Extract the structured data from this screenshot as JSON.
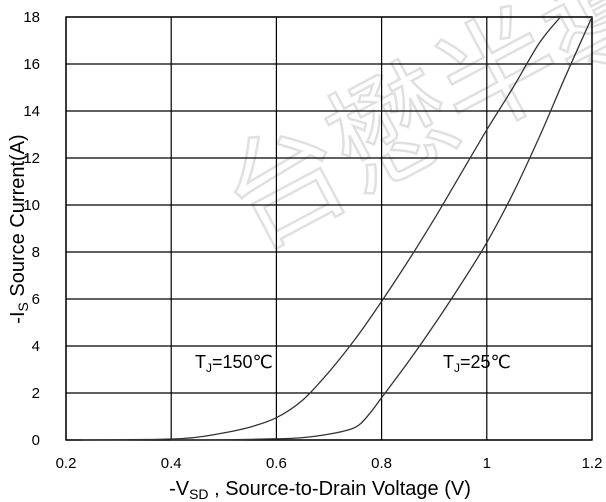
{
  "chart_data": {
    "type": "line",
    "title": "",
    "xlabel": {
      "prefix": "-V",
      "sub": "SD",
      "rest": " , Source-to-Drain Voltage (V)"
    },
    "ylabel": {
      "prefix": "-I",
      "sub": "S",
      "rest": " Source Current(A)"
    },
    "xlim": [
      0.2,
      1.2
    ],
    "ylim": [
      0,
      18
    ],
    "x_ticks": [
      "0.2",
      "0.4",
      "0.6",
      "0.8",
      "1",
      "1.2"
    ],
    "y_ticks": [
      "0",
      "2",
      "4",
      "6",
      "8",
      "10",
      "12",
      "14",
      "16",
      "18"
    ],
    "grid": true,
    "legend": "none",
    "series": [
      {
        "annotation": {
          "prefix": "T",
          "sub": "J",
          "rest": "=150℃"
        },
        "color": "#333333",
        "x": [
          0.23,
          0.35,
          0.42,
          0.46,
          0.5,
          0.55,
          0.6,
          0.65,
          0.7,
          0.75,
          0.8,
          0.85,
          0.9,
          0.95,
          1.0,
          1.05,
          1.1,
          1.14
        ],
        "y": [
          0.0,
          0.02,
          0.06,
          0.15,
          0.3,
          0.55,
          0.95,
          1.7,
          2.9,
          4.3,
          5.9,
          7.6,
          9.4,
          11.3,
          13.2,
          15.0,
          16.9,
          18.0
        ]
      },
      {
        "annotation": {
          "prefix": "T",
          "sub": "J",
          "rest": "=25℃"
        },
        "color": "#333333",
        "x": [
          0.4,
          0.5,
          0.6,
          0.65,
          0.7,
          0.74,
          0.76,
          0.78,
          0.8,
          0.85,
          0.9,
          0.95,
          1.0,
          1.05,
          1.1,
          1.15,
          1.2
        ],
        "y": [
          0.0,
          0.01,
          0.05,
          0.1,
          0.25,
          0.45,
          0.7,
          1.2,
          1.8,
          3.3,
          4.9,
          6.6,
          8.4,
          10.5,
          12.9,
          15.5,
          18.0
        ]
      }
    ]
  },
  "watermark": "台懋半導"
}
